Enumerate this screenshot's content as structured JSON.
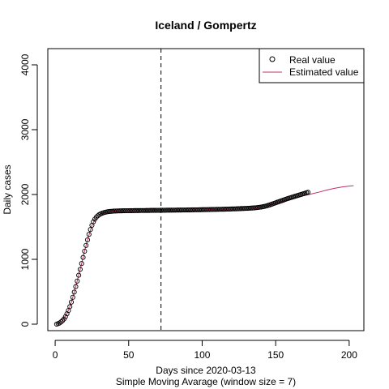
{
  "chart_data": {
    "type": "scatter",
    "title": "Iceland / Gompertz",
    "xlabel": "Days since 2020-03-13",
    "subtitle": "Simple Moving Avarage (window size = 7)",
    "ylabel": "Daily cases",
    "xlim": [
      -5,
      210
    ],
    "ylim": [
      -100,
      4250
    ],
    "x_ticks": [
      0,
      50,
      100,
      150,
      200
    ],
    "y_ticks": [
      0,
      1000,
      2000,
      3000,
      4000
    ],
    "vline_x": 72,
    "legend_position": "top-right",
    "series": [
      {
        "name": "Real value",
        "style": "open-circle",
        "color": "#000000",
        "x": [
          1,
          2,
          3,
          4,
          5,
          6,
          7,
          8,
          9,
          10,
          11,
          12,
          13,
          14,
          15,
          16,
          17,
          18,
          19,
          20,
          21,
          22,
          23,
          24,
          25,
          26,
          27,
          28,
          29,
          30,
          31,
          32,
          33,
          34,
          35,
          36,
          37,
          38,
          39,
          40,
          41,
          42,
          43,
          44,
          45,
          46,
          47,
          48,
          49,
          50,
          51,
          52,
          53,
          54,
          55,
          56,
          57,
          58,
          59,
          60,
          61,
          62,
          63,
          64,
          65,
          66,
          67,
          68,
          69,
          70,
          71,
          72,
          73,
          74,
          75,
          76,
          77,
          78,
          79,
          80,
          81,
          82,
          83,
          84,
          85,
          86,
          87,
          88,
          89,
          90,
          91,
          92,
          93,
          94,
          95,
          96,
          97,
          98,
          99,
          100,
          101,
          102,
          103,
          104,
          105,
          106,
          107,
          108,
          109,
          110,
          111,
          112,
          113,
          114,
          115,
          116,
          117,
          118,
          119,
          120,
          121,
          122,
          123,
          124,
          125,
          126,
          127,
          128,
          129,
          130,
          131,
          132,
          133,
          134,
          135,
          136,
          137,
          138,
          139,
          140,
          141,
          142,
          143,
          144,
          145,
          146,
          147,
          148,
          149,
          150,
          151,
          152,
          153,
          154,
          155,
          156,
          157,
          158,
          159,
          160,
          161,
          162,
          163,
          164,
          165,
          166,
          167,
          168,
          169,
          170,
          171,
          172
        ],
        "y": [
          0,
          8,
          18,
          35,
          55,
          80,
          115,
          160,
          210,
          270,
          340,
          415,
          495,
          580,
          665,
          755,
          845,
          935,
          1030,
          1125,
          1215,
          1300,
          1385,
          1460,
          1525,
          1580,
          1620,
          1650,
          1672,
          1690,
          1702,
          1712,
          1720,
          1726,
          1731,
          1735,
          1738,
          1740,
          1742,
          1744,
          1745,
          1746,
          1747,
          1748,
          1748,
          1749,
          1749,
          1750,
          1750,
          1750,
          1751,
          1751,
          1751,
          1752,
          1752,
          1752,
          1752,
          1753,
          1753,
          1753,
          1753,
          1754,
          1754,
          1754,
          1755,
          1755,
          1755,
          1755,
          1756,
          1756,
          1756,
          1757,
          1757,
          1757,
          1757,
          1758,
          1758,
          1758,
          1758,
          1759,
          1759,
          1759,
          1760,
          1760,
          1760,
          1760,
          1761,
          1761,
          1761,
          1762,
          1762,
          1762,
          1763,
          1763,
          1764,
          1764,
          1764,
          1765,
          1765,
          1766,
          1766,
          1767,
          1767,
          1768,
          1768,
          1769,
          1769,
          1770,
          1770,
          1771,
          1771,
          1772,
          1772,
          1773,
          1773,
          1774,
          1775,
          1775,
          1776,
          1777,
          1778,
          1778,
          1779,
          1780,
          1781,
          1782,
          1783,
          1784,
          1785,
          1786,
          1787,
          1789,
          1790,
          1791,
          1793,
          1795,
          1797,
          1800,
          1803,
          1806,
          1810,
          1815,
          1820,
          1826,
          1833,
          1840,
          1848,
          1856,
          1864,
          1872,
          1880,
          1888,
          1896,
          1904,
          1912,
          1920,
          1928,
          1936,
          1943,
          1950,
          1957,
          1964,
          1971,
          1978,
          1985,
          1992,
          1999,
          2006,
          2013,
          2020,
          2027,
          2034
        ]
      },
      {
        "name": "Estimated value",
        "style": "line",
        "color": "#c0306a",
        "x": [
          1,
          3,
          5,
          8,
          10,
          12,
          15,
          18,
          20,
          22,
          25,
          28,
          30,
          32,
          35,
          38,
          40,
          45,
          50,
          55,
          60,
          70,
          80,
          90,
          100,
          110,
          120,
          130,
          135,
          140,
          145,
          150,
          155,
          160,
          165,
          170,
          175,
          180,
          185,
          190,
          195,
          200,
          203
        ],
        "y": [
          0,
          18,
          55,
          160,
          270,
          415,
          665,
          935,
          1125,
          1300,
          1525,
          1650,
          1690,
          1712,
          1731,
          1740,
          1744,
          1748,
          1750,
          1752,
          1753,
          1756,
          1758,
          1760,
          1764,
          1769,
          1775,
          1786,
          1791,
          1806,
          1833,
          1864,
          1896,
          1928,
          1957,
          1985,
          2013,
          2040,
          2070,
          2095,
          2115,
          2130,
          2136
        ]
      }
    ]
  }
}
